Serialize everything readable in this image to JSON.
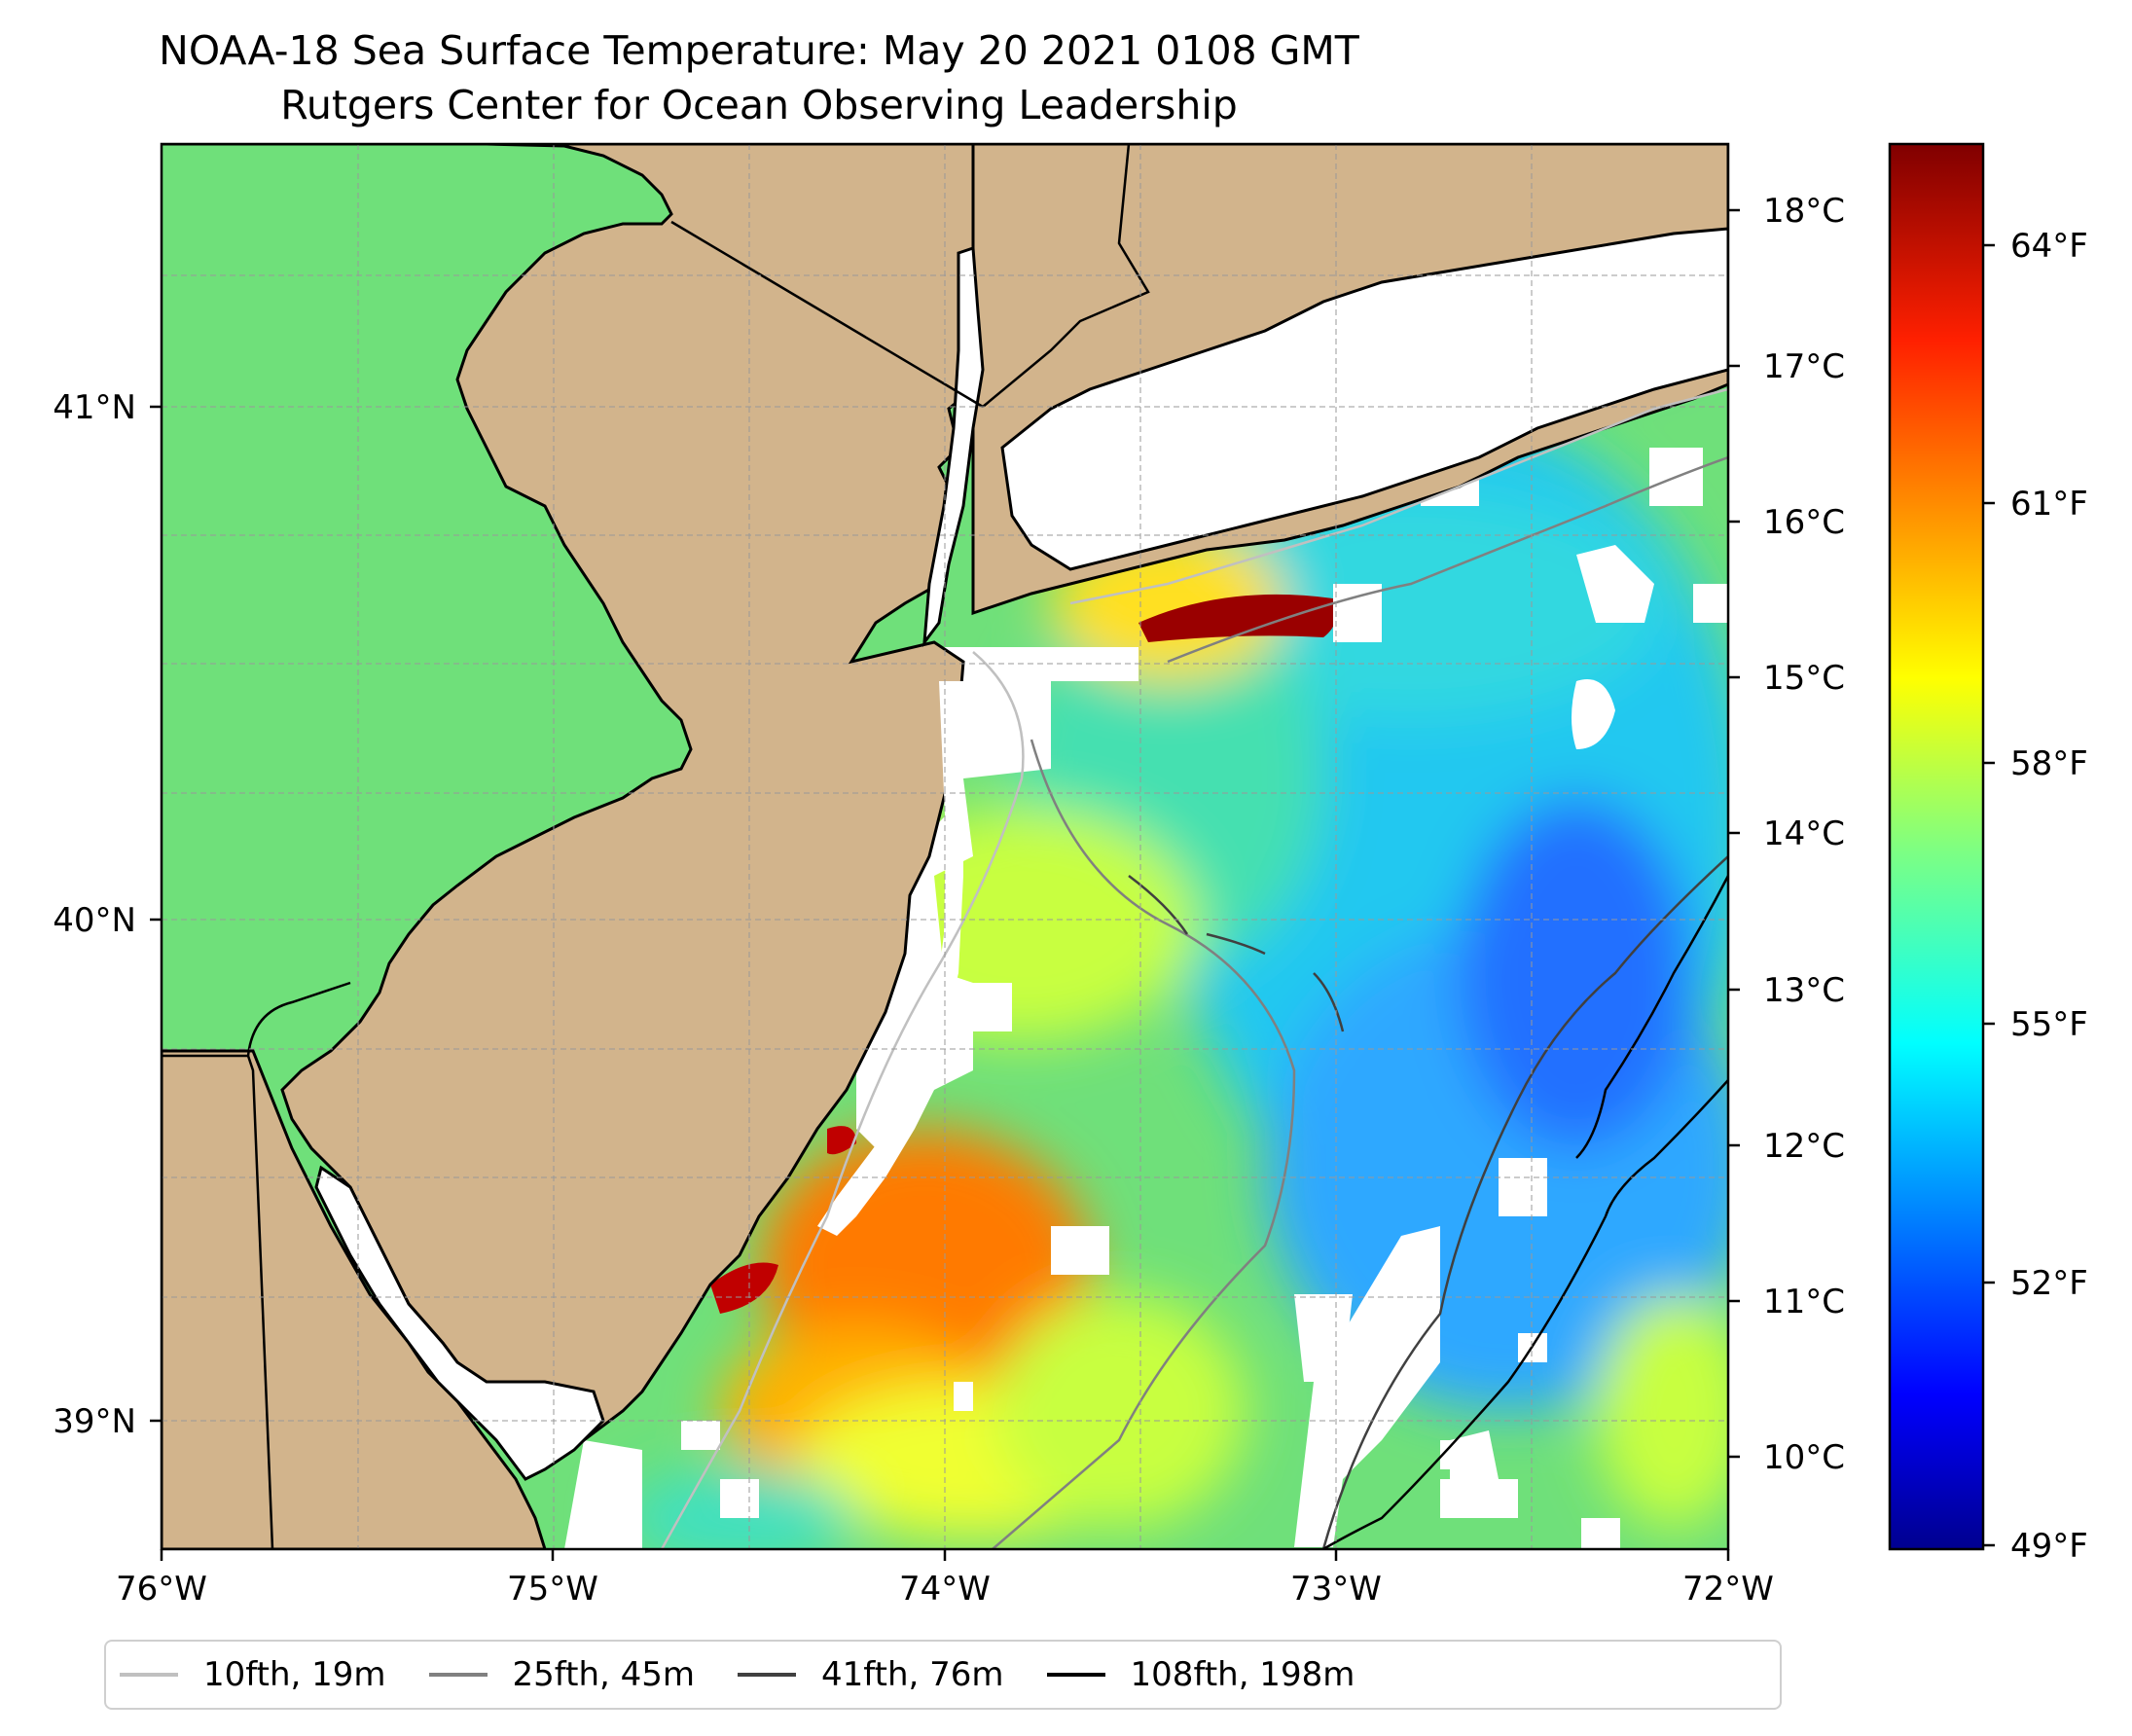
{
  "title": "NOAA-18 Sea Surface Temperature: May 20 2021 0108 GMT",
  "subtitle": "Rutgers Center for Ocean Observing Leadership",
  "lon_ticks": [
    "76°W",
    "75°W",
    "74°W",
    "73°W",
    "72°W"
  ],
  "lat_ticks": [
    "41°N",
    "40°N",
    "39°N"
  ],
  "map_extent": {
    "lon": [
      -76,
      -72
    ],
    "lat": [
      38.75,
      41.5
    ]
  },
  "colors": {
    "land": "#d2b48c",
    "no_data": "#ffffff",
    "coast": "#000000"
  },
  "colorbar": {
    "celsius_ticks": [
      "18°C",
      "17°C",
      "16°C",
      "15°C",
      "14°C",
      "13°C",
      "12°C",
      "11°C",
      "10°C"
    ],
    "fahrenheit_ticks": [
      "64°F",
      "61°F",
      "58°F",
      "55°F",
      "52°F",
      "49°F"
    ],
    "colormap": "jet"
  },
  "legend": [
    {
      "label": "10fth, 19m",
      "color": "#c0c0c0"
    },
    {
      "label": "25fth, 45m",
      "color": "#808080"
    },
    {
      "label": "41fth, 76m",
      "color": "#404040"
    },
    {
      "label": "108fth, 198m",
      "color": "#000000"
    }
  ]
}
